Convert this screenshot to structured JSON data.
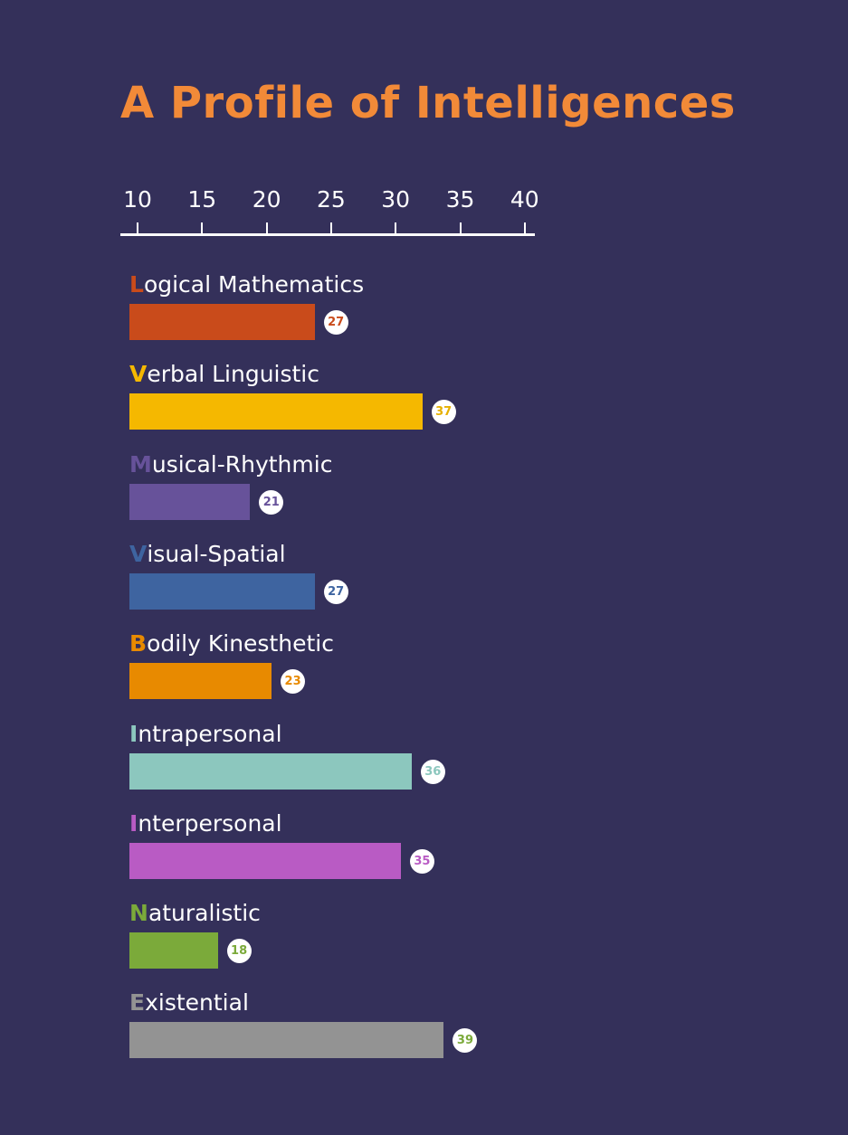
{
  "chart_data": {
    "type": "bar",
    "orientation": "horizontal",
    "title": "A Profile of Intelligences",
    "xlim": [
      10,
      40
    ],
    "xticks": [
      "10",
      "15",
      "20",
      "25",
      "30",
      "35",
      "40"
    ],
    "categories": [
      "Logical Mathematics",
      "Verbal Linguistic",
      "Musical-Rhythmic",
      "Visual-Spatial",
      "Bodily Kinesthetic",
      "Intrapersonal",
      "Interpersonal",
      "Naturalistic",
      "Existential"
    ],
    "series": [
      {
        "initial": "L",
        "rest": "ogical Mathematics",
        "value": 27,
        "color": "#c94b1b",
        "label_color": "#c94b1b"
      },
      {
        "initial": "V",
        "rest": "erbal Linguistic",
        "value": 37,
        "color": "#f5b800",
        "label_color": "#e6b000"
      },
      {
        "initial": "M",
        "rest": "usical-Rhythmic",
        "value": 21,
        "color": "#67529a",
        "label_color": "#67529a"
      },
      {
        "initial": "V",
        "rest": "isual-Spatial",
        "value": 27,
        "color": "#3e64a0",
        "label_color": "#3e64a0"
      },
      {
        "initial": "B",
        "rest": "odily Kinesthetic",
        "value": 23,
        "color": "#e88a00",
        "label_color": "#e88a00"
      },
      {
        "initial": "I",
        "rest": "ntrapersonal",
        "value": 36,
        "color": "#8cc7be",
        "label_color": "#8cc7be"
      },
      {
        "initial": "I",
        "rest": "nterpersonal",
        "value": 35,
        "color": "#b95bc4",
        "label_color": "#b95bc4"
      },
      {
        "initial": "N",
        "rest": "aturalistic",
        "value": 18,
        "color": "#7baa3a",
        "label_color": "#7baa3a"
      },
      {
        "initial": "E",
        "rest": "xistential",
        "value": 39,
        "color": "#939393",
        "label_color": "#7baa3a"
      }
    ]
  }
}
